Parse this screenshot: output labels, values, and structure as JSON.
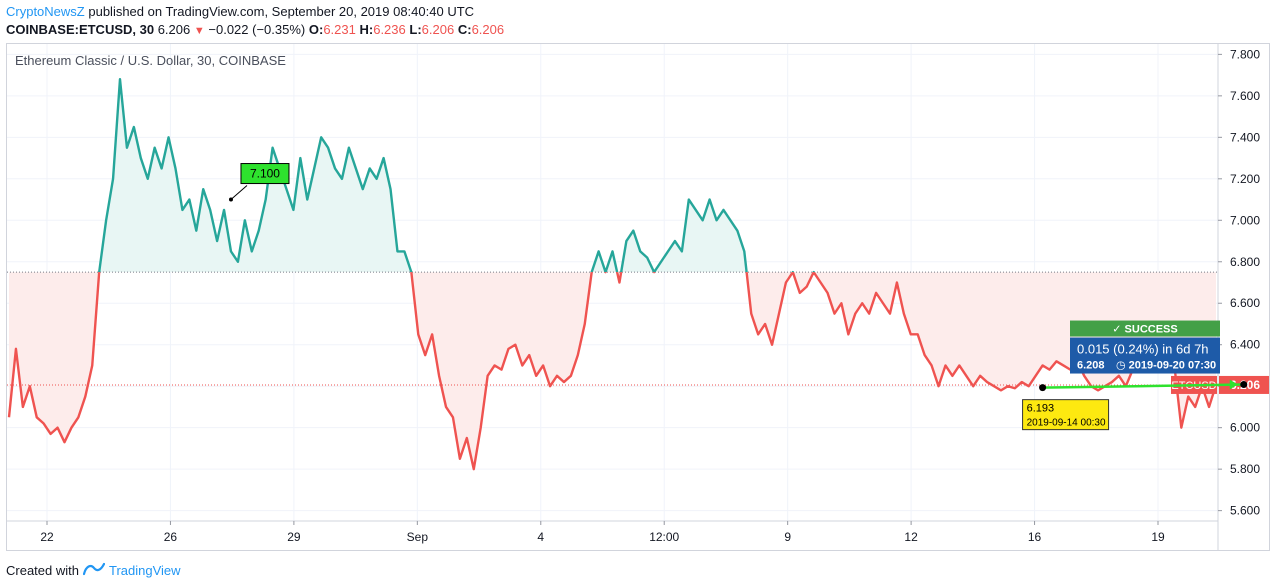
{
  "header": {
    "author": "CryptoNewsZ",
    "published_text": " published on TradingView.com, September 20, 2019 08:40:40 UTC",
    "symbol_interval": "COINBASE:ETCUSD, 30",
    "last": "6.206",
    "change": "−0.022 (−0.35%)",
    "open_label": "O:",
    "open": "6.231",
    "high_label": "H:",
    "high": "6.236",
    "low_label": "L:",
    "low": "6.206",
    "close_label": "C:",
    "close": "6.206"
  },
  "chart_title": "Ethereum Classic / U.S. Dollar, 30, COINBASE",
  "chart_data": {
    "type": "line",
    "title": "Ethereum Classic / U.S. Dollar, 30, COINBASE",
    "xlabel": "",
    "ylabel": "",
    "ylim": [
      5.55,
      7.85
    ],
    "x_tick_labels": [
      "22",
      "26",
      "29",
      "Sep",
      "4",
      "12:00",
      "9",
      "12",
      "16",
      "19"
    ],
    "y_tick_labels": [
      "7.800",
      "7.600",
      "7.400",
      "7.200",
      "7.000",
      "6.800",
      "6.600",
      "6.400",
      "6.200",
      "6.000",
      "5.800",
      "5.600"
    ],
    "baseline": 6.75,
    "last_price": 6.206,
    "last_price_label": "6.206",
    "price_tag": "ETCUSD",
    "series": [
      {
        "values": [
          6.05,
          6.38,
          6.1,
          6.2,
          6.05,
          6.02,
          5.97,
          6.0,
          5.93,
          6.0,
          6.05,
          6.15,
          6.3,
          6.75,
          7.0,
          7.2,
          7.68,
          7.35,
          7.45,
          7.3,
          7.2,
          7.35,
          7.25,
          7.4,
          7.25,
          7.05,
          7.1,
          6.95,
          7.15,
          7.05,
          6.9,
          7.05,
          6.85,
          6.8,
          7.0,
          6.85,
          6.95,
          7.1,
          7.35,
          7.25,
          7.15,
          7.05,
          7.3,
          7.1,
          7.25,
          7.4,
          7.35,
          7.25,
          7.2,
          7.35,
          7.25,
          7.15,
          7.25,
          7.2,
          7.3,
          7.15,
          6.85,
          6.85,
          6.75,
          6.45,
          6.35,
          6.45,
          6.25,
          6.1,
          6.05,
          5.85,
          5.95,
          5.8,
          6.0,
          6.25,
          6.3,
          6.28,
          6.38,
          6.4,
          6.3,
          6.35,
          6.25,
          6.3,
          6.2,
          6.25,
          6.22,
          6.25,
          6.35,
          6.5,
          6.75,
          6.85,
          6.75,
          6.85,
          6.7,
          6.9,
          6.95,
          6.85,
          6.82,
          6.75,
          6.8,
          6.85,
          6.9,
          6.85,
          7.1,
          7.05,
          7.0,
          7.1,
          7.0,
          7.05,
          7.0,
          6.95,
          6.85,
          6.55,
          6.45,
          6.5,
          6.4,
          6.55,
          6.7,
          6.75,
          6.65,
          6.68,
          6.75,
          6.7,
          6.65,
          6.55,
          6.6,
          6.45,
          6.55,
          6.6,
          6.55,
          6.65,
          6.6,
          6.55,
          6.7,
          6.55,
          6.45,
          6.45,
          6.35,
          6.3,
          6.2,
          6.3,
          6.25,
          6.3,
          6.25,
          6.2,
          6.25,
          6.22,
          6.2,
          6.18,
          6.2,
          6.19,
          6.22,
          6.2,
          6.25,
          6.3,
          6.28,
          6.32,
          6.3,
          6.28,
          6.32,
          6.25,
          6.2,
          6.18,
          6.2,
          6.22,
          6.25,
          6.2,
          6.28,
          6.32,
          6.35,
          6.3,
          6.38,
          6.42,
          6.3,
          6.0,
          6.15,
          6.1,
          6.2,
          6.1,
          6.206
        ]
      }
    ],
    "annotations": [
      {
        "type": "callout",
        "text": "7.100",
        "x_index": 32,
        "y": 7.1
      },
      {
        "type": "price-range",
        "start_index": 149,
        "start_value": 6.193,
        "end_index": 178,
        "end_value": 6.208,
        "start_label_price": "6.193",
        "start_label_date": "2019-09-14 00:30",
        "result": "SUCCESS",
        "change_text": "0.015 (0.24%)  in 6d 7h",
        "end_label_price": "6.208",
        "end_label_date": "2019-09-20",
        "end_label_time": "07:30"
      }
    ],
    "grid": true,
    "colors": {
      "above": "#26a69a",
      "below": "#ef5350",
      "fill_above": "#e8f6f4",
      "fill_below": "#fdeceb",
      "range_line": "#2ee22e",
      "success": "#43a047",
      "info_box": "#1e5ba8",
      "callout": "#2ee22e",
      "date_tag": "#fde910"
    }
  },
  "footer": {
    "created_with": "Created with",
    "tv_name": "TradingView"
  }
}
